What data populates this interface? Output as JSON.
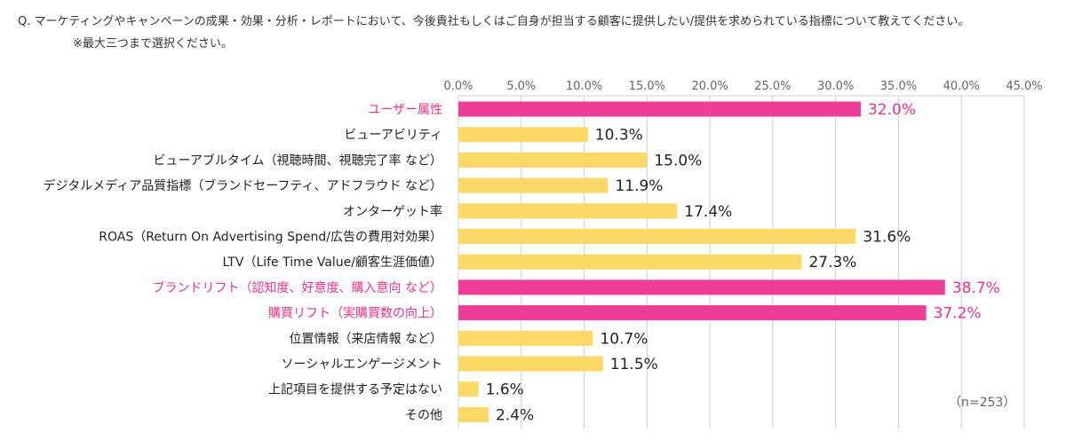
{
  "question": "Q.  マーケティングやキャンペーンの成果・効果・分析・レポートにおいて、今後貴社もしくはご自身が担当する顧客に提供したい/提供を求められている指標について教えてください。",
  "note": "※最大三つまで選択ください。",
  "sample_size": "（n=253）",
  "colors": {
    "highlight": "#EE3D96",
    "normal": "#FCD967",
    "highlight_text": "#E8338D",
    "text": "#222222",
    "grid": "#D0D0D0"
  },
  "chart_data": {
    "type": "bar",
    "orientation": "horizontal",
    "xlim": [
      0,
      45
    ],
    "ticks": [
      "0.0%",
      "5.0%",
      "10.0%",
      "15.0%",
      "20.0%",
      "25.0%",
      "30.0%",
      "35.0%",
      "40.0%",
      "45.0%"
    ],
    "tick_values": [
      0,
      5,
      10,
      15,
      20,
      25,
      30,
      35,
      40,
      45
    ],
    "categories": [
      "ユーザー属性",
      "ビューアビリティ",
      "ビューアブルタイム（視聴時間、視聴完了率 など）",
      "デジタルメディア品質指標（ブランドセーフティ、アドフラウド など）",
      "オンターゲット率",
      "ROAS（Return On Advertising Spend/広告の費用対効果）",
      "LTV（Life Time Value/顧客生涯価値）",
      "ブランドリフト（認知度、好意度、購入意向 など）",
      "購買リフト（実購買数の向上）",
      "位置情報（来店情報 など）",
      "ソーシャルエンゲージメント",
      "上記項目を提供する予定はない",
      "その他"
    ],
    "values": [
      32.0,
      10.3,
      15.0,
      11.9,
      17.4,
      31.6,
      27.3,
      38.7,
      37.2,
      10.7,
      11.5,
      1.6,
      2.4
    ],
    "value_labels": [
      "32.0%",
      "10.3%",
      "15.0%",
      "11.9%",
      "17.4%",
      "31.6%",
      "27.3%",
      "38.7%",
      "37.2%",
      "10.7%",
      "11.5%",
      "1.6%",
      "2.4%"
    ],
    "highlighted": [
      true,
      false,
      false,
      false,
      false,
      false,
      false,
      true,
      true,
      false,
      false,
      false,
      false
    ]
  }
}
